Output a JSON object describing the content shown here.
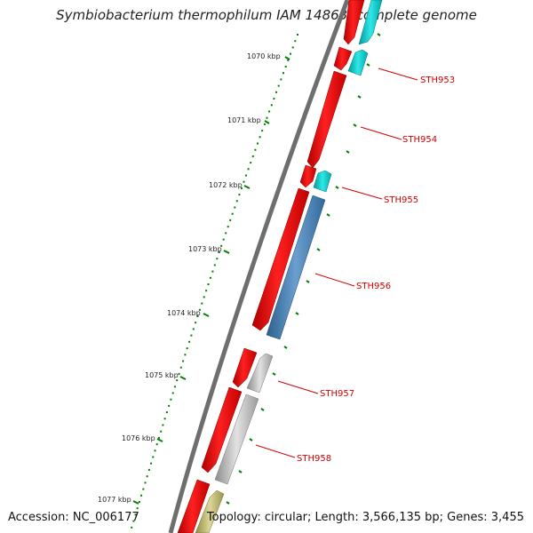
{
  "title": "Symbiobacterium thermophilum IAM 14863, complete genome",
  "footer": {
    "accession": "Accession: NC_006177",
    "topology": "Topology: circular; Length: 3,566,135 bp; Genes: 3,455"
  },
  "ruler": {
    "ticks": [
      "1070 kbp",
      "1071 kbp",
      "1072 kbp",
      "1073 kbp",
      "1074 kbp",
      "1075 kbp",
      "1076 kbp",
      "1077 kbp"
    ]
  },
  "genes": [
    {
      "id": "STH953"
    },
    {
      "id": "STH954"
    },
    {
      "id": "STH955"
    },
    {
      "id": "STH956"
    },
    {
      "id": "STH957"
    },
    {
      "id": "STH958"
    }
  ],
  "colors": {
    "strand_forward": "#ff0000",
    "strand_reverse_a": "#00cccc",
    "strand_reverse_b": "#4682b4",
    "strand_reverse_c": "#b4b4b4",
    "strand_reverse_d": "#bdb76b",
    "backbone": "#808080",
    "tick": "#008000",
    "label": "#d40000"
  }
}
